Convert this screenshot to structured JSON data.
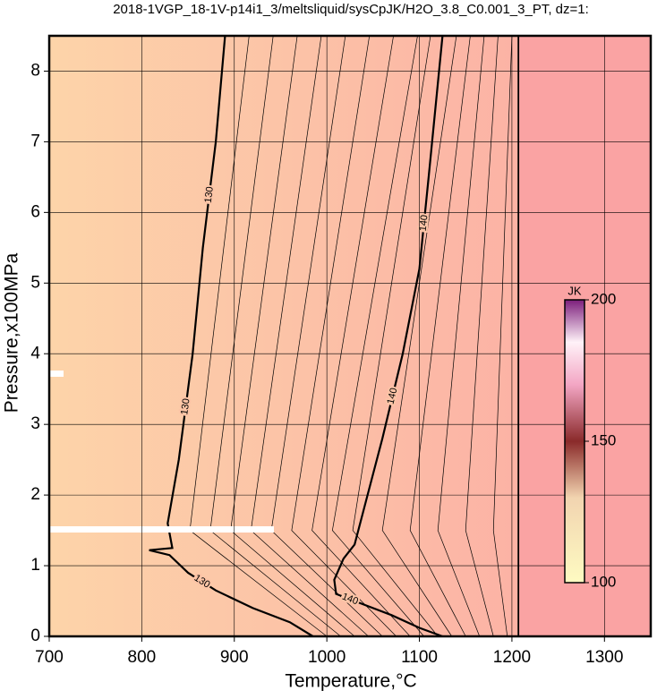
{
  "chart_data": {
    "type": "contour",
    "title": "2018-1VGP_18-1V-p14i1_3/meltsliquid/sysCpJK/H2O_3.8_C0.001_3_PT, dz=1:",
    "xlabel": "Temperature,°C",
    "ylabel": "Pressure,x100MPa",
    "xlim": [
      700,
      1350
    ],
    "ylim": [
      0,
      8.5
    ],
    "xticks": [
      700,
      800,
      900,
      1000,
      1100,
      1200,
      1300
    ],
    "yticks": [
      0,
      1,
      2,
      3,
      4,
      5,
      6,
      7,
      8
    ],
    "grid": true,
    "colorbar": {
      "label": "JK",
      "lim": [
        100,
        200
      ],
      "ticks": [
        100,
        150,
        200
      ]
    },
    "boundary": {
      "x": [
        1207,
        1207
      ],
      "y": [
        0,
        8.5
      ]
    },
    "contours": [
      {
        "level": 130,
        "bold": true,
        "x": [
          890,
          880,
          866,
          855,
          840,
          828,
          833,
          808,
          830,
          850,
          880,
          920,
          960,
          985
        ],
        "y": [
          8.5,
          7,
          5.5,
          4,
          2.5,
          1.6,
          1.25,
          1.22,
          1.15,
          0.9,
          0.65,
          0.4,
          0.2,
          0
        ]
      },
      {
        "level": 140,
        "bold": true,
        "x": [
          1125,
          1110,
          1100,
          1082,
          1060,
          1040,
          1030,
          1018,
          1008,
          1010,
          1040,
          1070,
          1100,
          1125
        ],
        "y": [
          8.5,
          6.5,
          5.2,
          4,
          2.8,
          1.8,
          1.3,
          1.1,
          0.8,
          0.6,
          0.45,
          0.3,
          0.12,
          0
        ]
      },
      {
        "level": 131,
        "x": [
          916,
          852,
          1000
        ],
        "y": [
          8.5,
          1.5,
          0
        ]
      },
      {
        "level": 132,
        "x": [
          942,
          874,
          1015
        ],
        "y": [
          8.5,
          1.5,
          0
        ]
      },
      {
        "level": 133,
        "x": [
          968,
          896,
          1030
        ],
        "y": [
          8.5,
          1.5,
          0
        ]
      },
      {
        "level": 134,
        "x": [
          994,
          918,
          1045
        ],
        "y": [
          8.5,
          1.5,
          0
        ]
      },
      {
        "level": 135,
        "x": [
          1020,
          940,
          1060
        ],
        "y": [
          8.5,
          1.5,
          0
        ]
      },
      {
        "level": 136,
        "x": [
          1046,
          962,
          1075
        ],
        "y": [
          8.5,
          1.5,
          0
        ]
      },
      {
        "level": 137,
        "x": [
          1072,
          984,
          1090
        ],
        "y": [
          8.5,
          1.5,
          0
        ]
      },
      {
        "level": 138,
        "x": [
          1098,
          1006,
          1105
        ],
        "y": [
          8.5,
          1.5,
          0
        ]
      },
      {
        "level": 139,
        "x": [
          1112,
          1028,
          1120
        ],
        "y": [
          8.5,
          1.5,
          0
        ]
      },
      {
        "level": 141,
        "x": [
          1140,
          1060,
          1135
        ],
        "y": [
          8.5,
          1.5,
          0
        ]
      },
      {
        "level": 142,
        "x": [
          1155,
          1090,
          1150
        ],
        "y": [
          8.5,
          1.5,
          0
        ]
      },
      {
        "level": 143,
        "x": [
          1170,
          1120,
          1165
        ],
        "y": [
          8.5,
          1.5,
          0
        ]
      },
      {
        "level": 144,
        "x": [
          1185,
          1150,
          1180
        ],
        "y": [
          8.5,
          1.5,
          0
        ]
      },
      {
        "level": 145,
        "x": [
          1200,
          1180,
          1195
        ],
        "y": [
          8.5,
          1.5,
          0
        ]
      }
    ]
  }
}
